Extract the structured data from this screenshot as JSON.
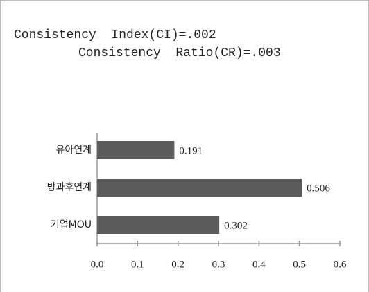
{
  "chart_data": {
    "type": "bar",
    "orientation": "horizontal",
    "title": [
      "Consistency  Index(CI)=.002",
      "Consistency  Ratio(CR)=.003"
    ],
    "categories": [
      "유아연계",
      "방과후연계",
      "기업MOU"
    ],
    "values": [
      0.191,
      0.506,
      0.302
    ],
    "color": "#5b5b5b",
    "xlim": [
      0,
      0.6
    ],
    "xticks": [
      {
        "value": 0,
        "label": "0.0"
      },
      0.1,
      0.2,
      0.3,
      0.4,
      0.5,
      0.6
    ]
  }
}
